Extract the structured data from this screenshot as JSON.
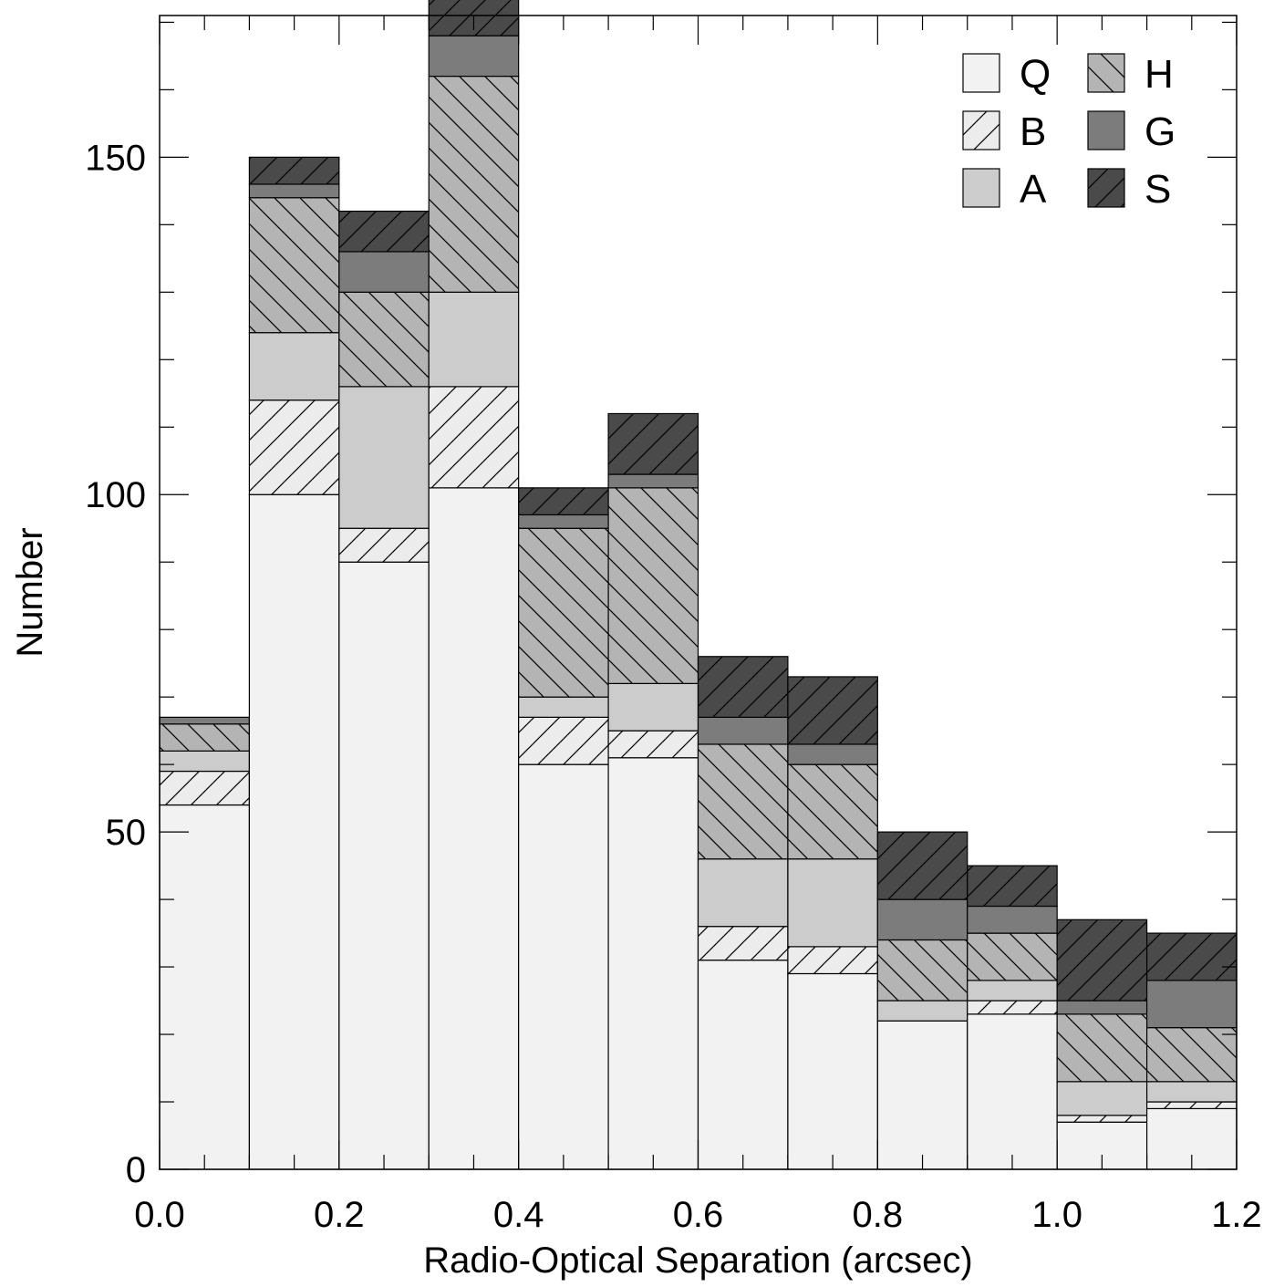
{
  "chart_data": {
    "type": "bar",
    "stacked": true,
    "bin_edges": [
      0.0,
      0.1,
      0.2,
      0.3,
      0.4,
      0.5,
      0.6,
      0.7,
      0.8,
      0.9,
      1.0,
      1.1,
      1.2
    ],
    "xlabel": "Radio-Optical Separation (arcsec)",
    "ylabel": "Number",
    "xlim": [
      0.0,
      1.2
    ],
    "ylim": [
      0,
      171
    ],
    "x_ticks": [
      "0.0",
      "0.2",
      "0.4",
      "0.6",
      "0.8",
      "1.0",
      "1.2"
    ],
    "y_ticks": [
      "0",
      "50",
      "100",
      "150"
    ],
    "legend_position": "top-right",
    "series": [
      {
        "name": "Q",
        "fill": "#f2f2f2",
        "hatch": "none",
        "values": [
          54,
          100,
          90,
          101,
          60,
          61,
          31,
          29,
          22,
          23,
          7,
          9
        ]
      },
      {
        "name": "B",
        "fill": "#ececec",
        "hatch": "forward",
        "values": [
          5,
          14,
          5,
          15,
          7,
          4,
          5,
          4,
          0,
          2,
          1,
          1
        ]
      },
      {
        "name": "A",
        "fill": "#cccccc",
        "hatch": "none",
        "values": [
          3,
          10,
          21,
          14,
          3,
          7,
          10,
          13,
          3,
          3,
          5,
          3
        ]
      },
      {
        "name": "H",
        "fill": "#b4b4b4",
        "hatch": "backward",
        "values": [
          4,
          20,
          14,
          32,
          25,
          29,
          17,
          14,
          9,
          7,
          10,
          8
        ]
      },
      {
        "name": "G",
        "fill": "#7c7c7c",
        "hatch": "none",
        "values": [
          1,
          2,
          6,
          6,
          2,
          2,
          4,
          3,
          6,
          4,
          2,
          7
        ]
      },
      {
        "name": "S",
        "fill": "#4a4a4a",
        "hatch": "forward",
        "values": [
          0,
          4,
          6,
          6,
          4,
          9,
          9,
          10,
          10,
          6,
          12,
          7
        ]
      }
    ]
  }
}
